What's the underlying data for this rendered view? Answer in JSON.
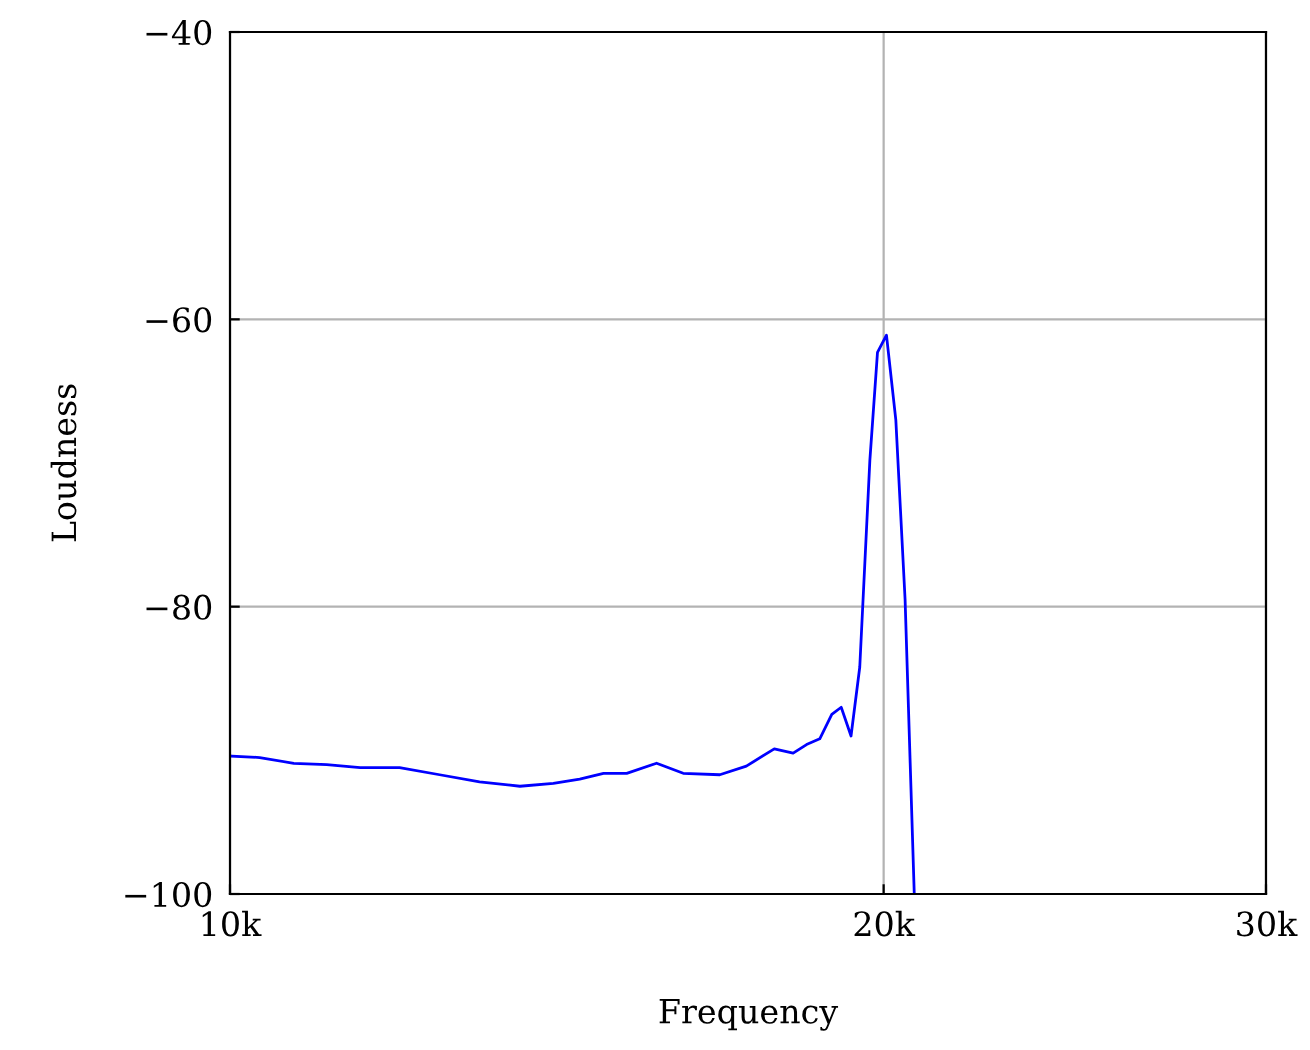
{
  "chart_data": {
    "type": "line",
    "xlabel": "Frequency",
    "ylabel": "Loudness",
    "log": "x",
    "x": [
      10020,
      10320,
      10700,
      11080,
      11480,
      11970,
      12490,
      13030,
      13600,
      14090,
      14490,
      14860,
      15230,
      15720,
      16170,
      16810,
      17290,
      17810,
      18170,
      18430,
      18690,
      18930,
      19120,
      19320,
      19500,
      19710,
      19870,
      20060,
      20260,
      20460,
      20660
    ],
    "series": [
      {
        "color": "#0000ff",
        "values": [
          -90.4,
          -90.5,
          -90.9,
          -91.0,
          -91.2,
          -91.2,
          -91.7,
          -92.2,
          -92.5,
          -92.3,
          -92.0,
          -91.6,
          -91.6,
          -90.9,
          -91.6,
          -91.7,
          -91.1,
          -89.9,
          -90.2,
          -89.6,
          -89.2,
          -87.5,
          -87.0,
          -89.0,
          -84.2,
          -69.8,
          -62.3,
          -61.1,
          -67.0,
          -79.5,
          -100
        ]
      }
    ],
    "xlim": [
      10000,
      30000
    ],
    "xticks": [
      {
        "value": 10000,
        "label": "10k"
      },
      {
        "value": 20000,
        "label": "20k"
      },
      {
        "value": 30000,
        "label": "30k"
      }
    ],
    "ylim": [
      -100,
      -40
    ],
    "yticks": [
      {
        "value": -100,
        "label": "−100"
      },
      {
        "value": -80,
        "label": "−80"
      },
      {
        "value": -60,
        "label": "−60"
      },
      {
        "value": -40,
        "label": "−40"
      }
    ],
    "grid": true,
    "line_style": "solid",
    "marker": "none"
  }
}
